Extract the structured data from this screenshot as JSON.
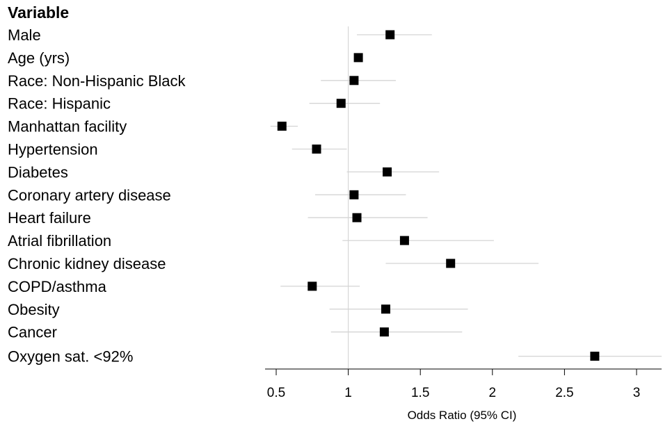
{
  "chart_data": {
    "type": "forest",
    "header": "Variable",
    "xlabel": "Odds Ratio (95% CI)",
    "xlim": [
      0.42,
      3.2
    ],
    "reference_line": 1,
    "xticks": [
      0.5,
      1,
      1.5,
      2,
      2.5,
      3
    ],
    "xtick_labels": [
      "0.5",
      "1",
      "1.5",
      "2",
      "2.5",
      "3"
    ],
    "rows": [
      {
        "label": "Male",
        "or": 1.29,
        "lo": 1.06,
        "hi": 1.58
      },
      {
        "label": "Age (yrs)",
        "or": 1.07,
        "lo": 1.05,
        "hi": 1.08
      },
      {
        "label": "Race: Non-Hispanic Black",
        "or": 1.04,
        "lo": 0.81,
        "hi": 1.33
      },
      {
        "label": "Race: Hispanic",
        "or": 0.95,
        "lo": 0.73,
        "hi": 1.22
      },
      {
        "label": "Manhattan facility",
        "or": 0.54,
        "lo": 0.46,
        "hi": 0.65
      },
      {
        "label": "Hypertension",
        "or": 0.78,
        "lo": 0.61,
        "hi": 0.99
      },
      {
        "label": "Diabetes",
        "or": 1.27,
        "lo": 0.99,
        "hi": 1.63
      },
      {
        "label": "Coronary artery disease",
        "or": 1.04,
        "lo": 0.77,
        "hi": 1.4
      },
      {
        "label": "Heart failure",
        "or": 1.06,
        "lo": 0.72,
        "hi": 1.55
      },
      {
        "label": "Atrial fibrillation",
        "or": 1.39,
        "lo": 0.96,
        "hi": 2.01
      },
      {
        "label": "Chronic kidney disease",
        "or": 1.71,
        "lo": 1.26,
        "hi": 2.32
      },
      {
        "label": "COPD/asthma",
        "or": 0.75,
        "lo": 0.53,
        "hi": 1.08
      },
      {
        "label": "Obesity",
        "or": 1.26,
        "lo": 0.87,
        "hi": 1.83
      },
      {
        "label": "Cancer",
        "or": 1.25,
        "lo": 0.88,
        "hi": 1.79
      },
      {
        "label": "Oxygen sat. <92%",
        "or": 2.71,
        "lo": 2.18,
        "hi": 3.39
      }
    ],
    "colors": {
      "point": "#000000",
      "ci_line": "#d4d4d4",
      "ref_line": "#cfcfcf",
      "axis": "#000000"
    },
    "grid": false
  }
}
